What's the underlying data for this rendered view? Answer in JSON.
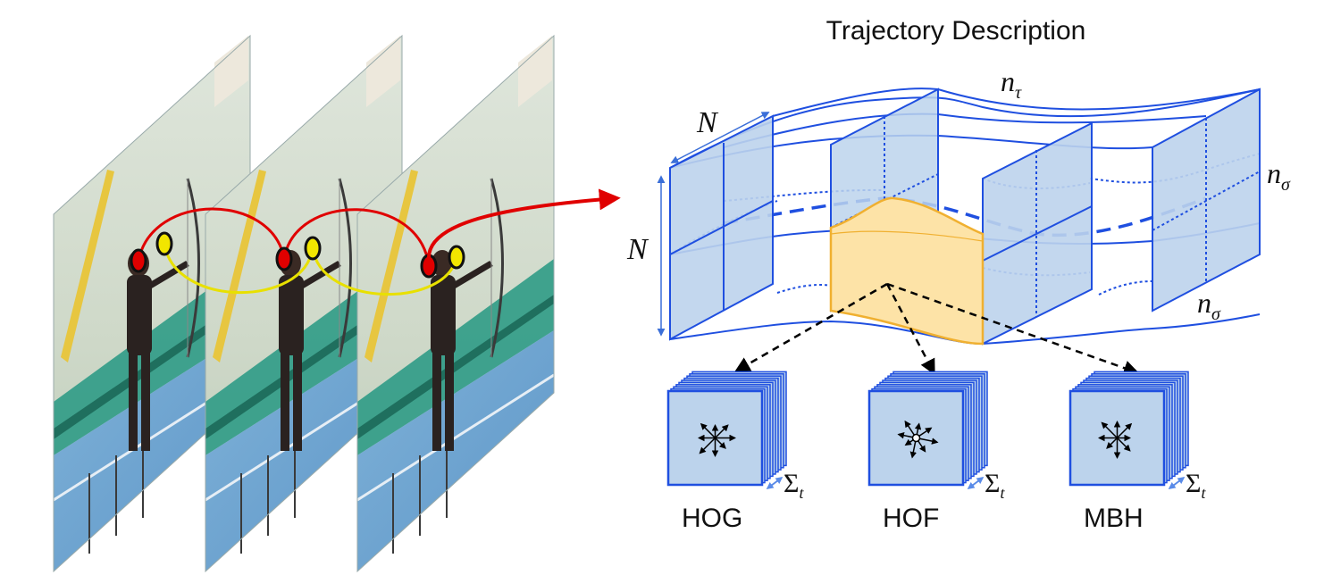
{
  "title": "Trajectory Description",
  "labels": {
    "n_tau": {
      "base": "n",
      "sub": "τ"
    },
    "n_sigma_right": {
      "base": "n",
      "sub": "σ"
    },
    "n_sigma_bottom": {
      "base": "n",
      "sub": "σ"
    },
    "N_top": "N",
    "N_left": "N"
  },
  "descriptors": [
    {
      "name": "HOG",
      "sum_base": "Σ",
      "sum_sub": "t"
    },
    {
      "name": "HOF",
      "sum_base": "Σ",
      "sum_sub": "t"
    },
    {
      "name": "MBH",
      "sum_base": "Σ",
      "sum_sub": "t"
    }
  ],
  "frames": [
    {
      "id": "frame-1"
    },
    {
      "id": "frame-2"
    },
    {
      "id": "frame-3"
    }
  ],
  "trajectory_points": [
    {
      "name": "red-point",
      "color": "#e00000"
    },
    {
      "name": "yellow-point",
      "color": "#f2e600"
    }
  ],
  "colors": {
    "volume_stroke": "#1f4fe0",
    "volume_fill": "#bcd3ec",
    "cell_fill": "#fde3a7",
    "cell_stroke": "#f0b030",
    "arrow_red": "#e00000",
    "trajectory_red": "#e00000",
    "trajectory_yellow": "#e8e000",
    "descriptor_border": "#1f4fe0",
    "descriptor_fill": "#bcd3ec"
  }
}
